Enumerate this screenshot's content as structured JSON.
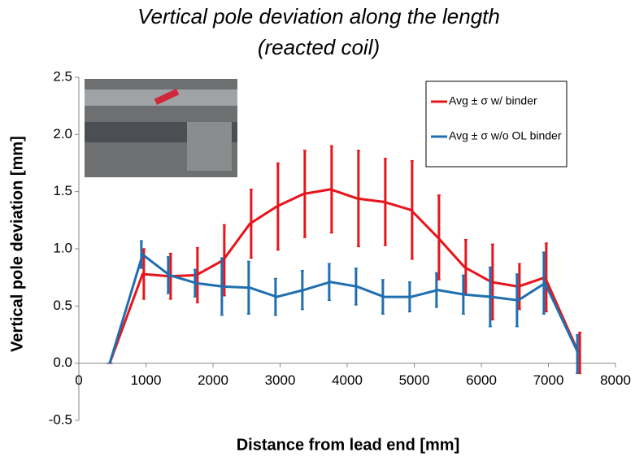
{
  "chart_data": {
    "type": "line",
    "title": "Vertical pole deviation along the length",
    "subtitle": "(reacted coil)",
    "x_label": "Distance from lead end [mm]",
    "y_label": "Vertical pole deviation [mm]",
    "x": [
      460,
      950,
      1350,
      1750,
      2150,
      2550,
      2950,
      3350,
      3750,
      4150,
      4550,
      4950,
      5350,
      5750,
      6150,
      6550,
      6950,
      7450
    ],
    "series": [
      {
        "name": "Avg ± σ w/ binder",
        "color": "#e8141b",
        "values": [
          0,
          0.78,
          0.76,
          0.77,
          0.9,
          1.22,
          1.37,
          1.48,
          1.52,
          1.44,
          1.41,
          1.34,
          1.1,
          0.84,
          0.71,
          0.67,
          0.75,
          0.09
        ],
        "errors": [
          0,
          0.22,
          0.2,
          0.24,
          0.31,
          0.3,
          0.38,
          0.38,
          0.38,
          0.42,
          0.38,
          0.43,
          0.37,
          0.24,
          0.33,
          0.2,
          0.3,
          0.18
        ]
      },
      {
        "name": "Avg ± σ w/o OL binder",
        "color": "#1f6fb0",
        "values": [
          0,
          0.95,
          0.77,
          0.7,
          0.67,
          0.66,
          0.58,
          0.64,
          0.71,
          0.67,
          0.58,
          0.58,
          0.64,
          0.6,
          0.58,
          0.55,
          0.7,
          0.08
        ],
        "errors": [
          0,
          0.12,
          0.16,
          0.12,
          0.25,
          0.23,
          0.16,
          0.17,
          0.16,
          0.16,
          0.15,
          0.13,
          0.15,
          0.17,
          0.26,
          0.23,
          0.27,
          0.17
        ]
      }
    ],
    "xlim": [
      0,
      8000
    ],
    "xticks": [
      0,
      1000,
      2000,
      3000,
      4000,
      5000,
      6000,
      7000,
      8000
    ],
    "ylim": [
      -0.5,
      2.5
    ],
    "yticks": [
      -0.5,
      {
        "value": 0,
        "label": "0.0"
      },
      0.5,
      {
        "value": 1,
        "label": "1.0"
      },
      1.5,
      {
        "value": 2,
        "label": "2.0"
      },
      2.5
    ],
    "legend": "upper-right"
  }
}
